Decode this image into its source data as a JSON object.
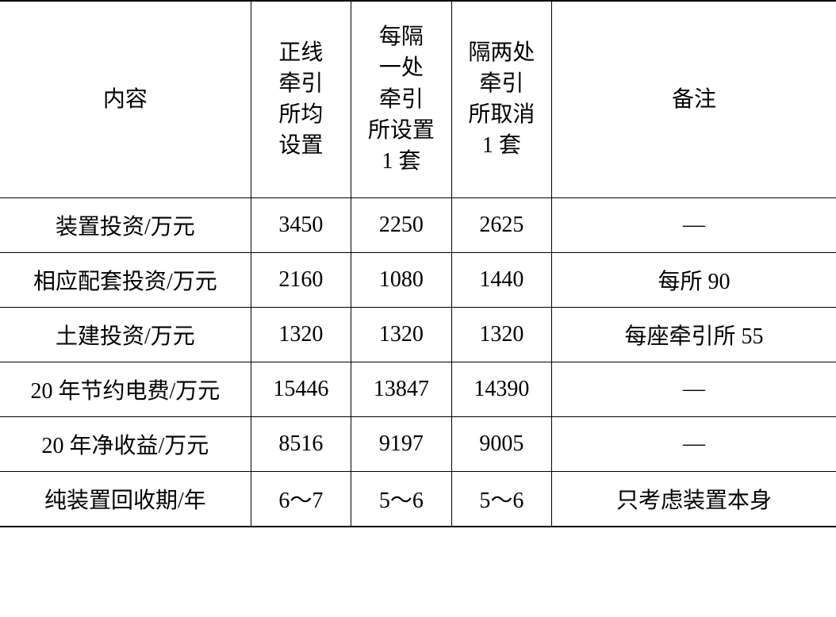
{
  "table": {
    "type": "table",
    "background_color": "#ffffff",
    "text_color": "#000000",
    "border_color": "#000000",
    "font_family": "SimSun",
    "font_size": 28,
    "columns": [
      {
        "key": "content",
        "label": "内容",
        "width_pct": 30,
        "align": "center"
      },
      {
        "key": "opt1",
        "label": "正线\n牵引\n所均\n设置",
        "width_pct": 12,
        "align": "center"
      },
      {
        "key": "opt2",
        "label": "每隔\n一处\n牵引\n所设置\n1 套",
        "width_pct": 12,
        "align": "center"
      },
      {
        "key": "opt3",
        "label": "隔两处\n牵引\n所取消\n1 套",
        "width_pct": 12,
        "align": "center"
      },
      {
        "key": "note",
        "label": "备注",
        "width_pct": 34,
        "align": "center"
      }
    ],
    "rows": [
      {
        "content": "装置投资/万元",
        "opt1": "3450",
        "opt2": "2250",
        "opt3": "2625",
        "note": "—"
      },
      {
        "content": "相应配套投资/万元",
        "opt1": "2160",
        "opt2": "1080",
        "opt3": "1440",
        "note": "每所 90"
      },
      {
        "content": "土建投资/万元",
        "opt1": "1320",
        "opt2": "1320",
        "opt3": "1320",
        "note": "每座牵引所 55"
      },
      {
        "content": "20 年节约电费/万元",
        "opt1": "15446",
        "opt2": "13847",
        "opt3": "14390",
        "note": "—"
      },
      {
        "content": "20 年净收益/万元",
        "opt1": "8516",
        "opt2": "9197",
        "opt3": "9005",
        "note": "—"
      },
      {
        "content": "纯装置回收期/年",
        "opt1": "6～7",
        "opt2": "5～6",
        "opt3": "5～6",
        "note": "只考虑装置本身"
      }
    ]
  }
}
